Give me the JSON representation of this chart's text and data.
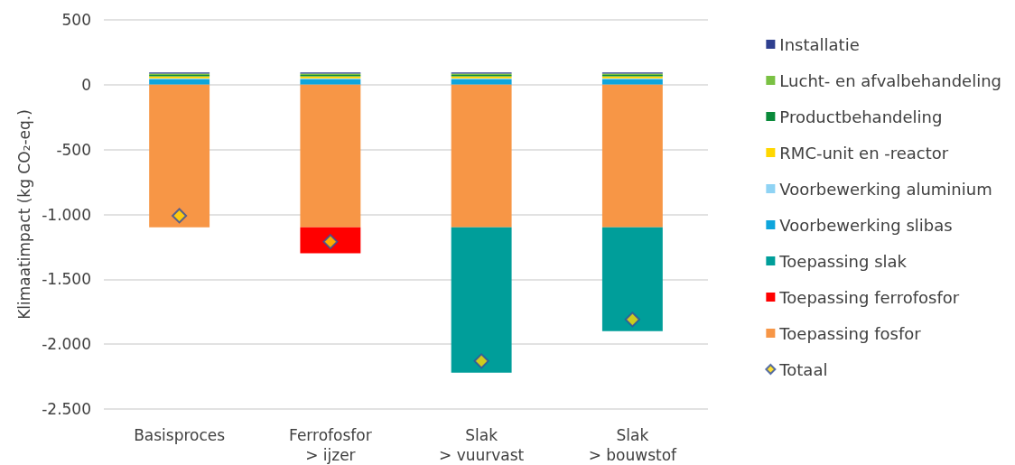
{
  "chart_data": {
    "type": "bar",
    "stacked": true,
    "ylabel": "Klimaatimpact (kg CO₂-eq.)",
    "categories": [
      "Basisproces",
      "Ferrofosfor\n> ijzer",
      "Slak\n> vuurvast",
      "Slak\n> bouwstof"
    ],
    "ylim": [
      -2500,
      500
    ],
    "yticks": [
      {
        "value": -2500,
        "label": "-2.500"
      },
      {
        "value": -2000,
        "label": "-2.000"
      },
      {
        "value": -1500,
        "label": "-1.500"
      },
      {
        "value": -1000,
        "label": "-1.000"
      },
      -500,
      0,
      500
    ],
    "grid": "y",
    "legend": "right",
    "series": [
      {
        "name": "Voorbewerking slibas",
        "color": "#0ea5dc",
        "values": [
          40,
          40,
          40,
          40
        ]
      },
      {
        "name": "Voorbewerking aluminium",
        "color": "#8fd3f4",
        "values": [
          10,
          10,
          10,
          10
        ]
      },
      {
        "name": "RMC-unit en -reactor",
        "color": "#ffd700",
        "values": [
          15,
          15,
          15,
          15
        ]
      },
      {
        "name": "Productbehandeling",
        "color": "#0a8a3a",
        "values": [
          10,
          10,
          10,
          10
        ]
      },
      {
        "name": "Lucht- en afvalbehandeling",
        "color": "#7ac143",
        "values": [
          10,
          10,
          10,
          10
        ]
      },
      {
        "name": "Installatie",
        "color": "#2f3f8f",
        "values": [
          10,
          10,
          10,
          10
        ]
      },
      {
        "name": "Toepassing fosfor",
        "color": "#f79646",
        "values": [
          -1100,
          -1100,
          -1100,
          -1100
        ]
      },
      {
        "name": "Toepassing ferrofosfor",
        "color": "#ff0000",
        "values": [
          0,
          -200,
          0,
          0
        ]
      },
      {
        "name": "Toepassing slak",
        "color": "#009e9a",
        "values": [
          0,
          0,
          -1120,
          -800
        ]
      },
      {
        "name": "Totaal",
        "type": "scatter",
        "marker": "diamond",
        "color": "#ffd700",
        "x": [
          "Basisproces",
          "Ferrofosfor\n> ijzer",
          "Slak\n> vuurvast",
          "Slak\n> bouwstof"
        ],
        "values": [
          -1010,
          -1210,
          -2130,
          -1810
        ]
      }
    ]
  }
}
